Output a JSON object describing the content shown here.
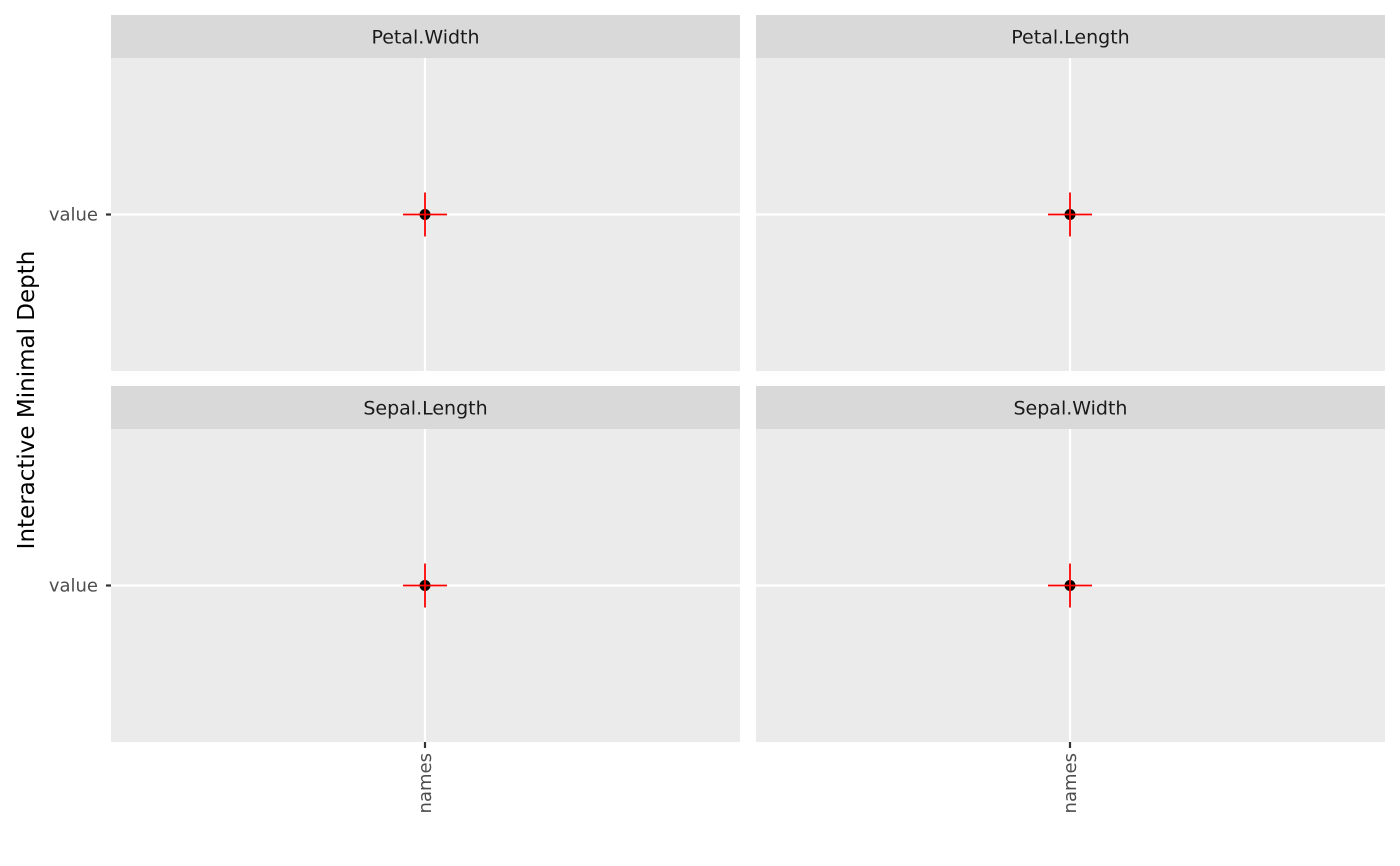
{
  "chart_data": {
    "type": "scatter",
    "ylabel": "Interactive Minimal Depth",
    "xlabel": "",
    "x_categories": [
      "names"
    ],
    "y_categories": [
      "value"
    ],
    "grid": true,
    "panels": [
      {
        "strip": "Petal.Width",
        "points": [
          {
            "x": "names",
            "y": "value"
          }
        ]
      },
      {
        "strip": "Petal.Length",
        "points": [
          {
            "x": "names",
            "y": "value"
          }
        ]
      },
      {
        "strip": "Sepal.Length",
        "points": [
          {
            "x": "names",
            "y": "value"
          }
        ]
      },
      {
        "strip": "Sepal.Width",
        "points": [
          {
            "x": "names",
            "y": "value"
          }
        ]
      }
    ],
    "colors": {
      "panel_background": "#ebebeb",
      "strip_background": "#d9d9d9",
      "grid": "#ffffff",
      "point": "#000000",
      "crosshair": "#ff0000"
    }
  }
}
